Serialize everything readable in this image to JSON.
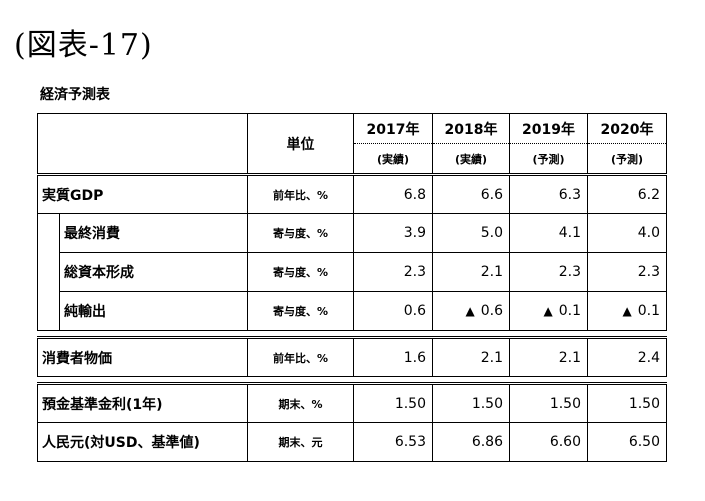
{
  "figure_title": "(図表-17)",
  "table_title": "経済予測表",
  "header": {
    "unit": "単位",
    "years": [
      "2017年",
      "2018年",
      "2019年",
      "2020年"
    ],
    "notes": [
      "(実績)",
      "(実績)",
      "(予測)",
      "(予測)"
    ]
  },
  "rows": [
    {
      "label": "実質GDP",
      "unit": "前年比、%",
      "values": [
        "6.8",
        "6.6",
        "6.3",
        "6.2"
      ]
    },
    {
      "label": "最終消費",
      "unit": "寄与度、%",
      "values": [
        "3.9",
        "5.0",
        "4.1",
        "4.0"
      ]
    },
    {
      "label": "総資本形成",
      "unit": "寄与度、%",
      "values": [
        "2.3",
        "2.1",
        "2.3",
        "2.3"
      ]
    },
    {
      "label": "純輸出",
      "unit": "寄与度、%",
      "values": [
        "0.6",
        "0.6",
        "0.1",
        "0.1"
      ],
      "negative_marker": "▲",
      "negative": [
        false,
        true,
        true,
        true
      ]
    },
    {
      "label": "消費者物価",
      "unit": "前年比、%",
      "values": [
        "1.6",
        "2.1",
        "2.1",
        "2.4"
      ]
    },
    {
      "label": "預金基準金利(1年)",
      "unit": "期末、%",
      "values": [
        "1.50",
        "1.50",
        "1.50",
        "1.50"
      ]
    },
    {
      "label": "人民元(対USD、基準値)",
      "unit": "期末、元",
      "values": [
        "6.53",
        "6.86",
        "6.60",
        "6.50"
      ]
    }
  ]
}
